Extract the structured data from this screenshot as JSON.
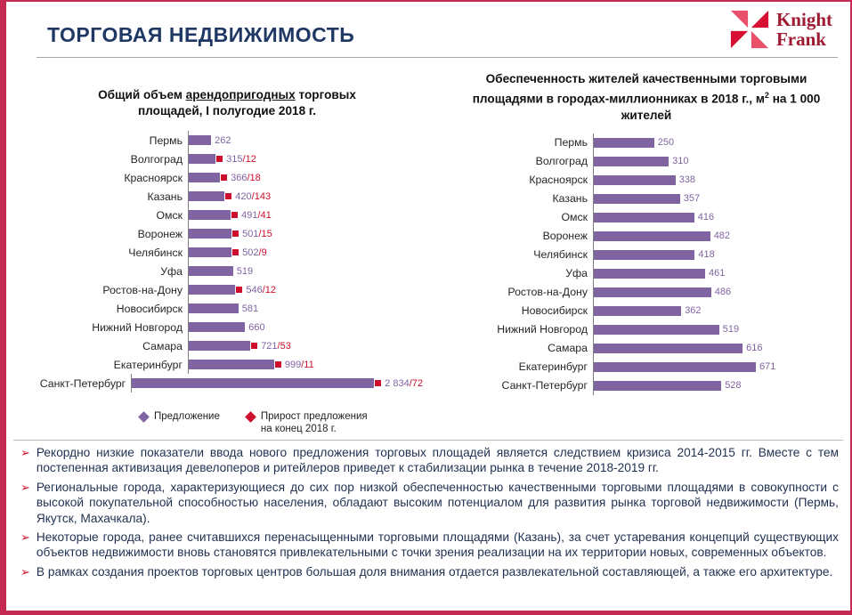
{
  "title": "ТОРГОВАЯ НЕДВИЖИМОСТЬ",
  "logo": {
    "line1": "Knight",
    "line2": "Frank"
  },
  "icons": {
    "logo": "knight-frank-pinwheel-icon",
    "bullet": "arrow-bullet-icon",
    "legend_supply": "purple-diamond-icon",
    "legend_growth": "red-diamond-icon"
  },
  "colors": {
    "navy": "#1F3864",
    "purple": "#8064A2",
    "red": "#CE0E2D",
    "frame": "#C52A52",
    "logo_text": "#9E1B32",
    "pink": "#E8506B",
    "dark_red": "#D60F33",
    "text": "#1F3050",
    "gray_line": "#A6A6A6",
    "axis": "#7F7F7F"
  },
  "headers": {
    "left": {
      "pre": "Общий объем ",
      "underlined": "арендопригодных",
      "post": " торговых площадей, I полугодие 2018 г."
    },
    "right": {
      "pre": "Обеспеченность жителей качественными торговыми площадями в городах-миллионниках в 2018 г., м",
      "sup": "2",
      "post": " на 1 000 жителей"
    }
  },
  "chart_data": [
    {
      "type": "bar",
      "orientation": "horizontal",
      "title": "Общий объем арендопригодных торговых площадей, I полугодие 2018 г.",
      "categories": [
        "Пермь",
        "Волгоград",
        "Красноярск",
        "Казань",
        "Омск",
        "Воронеж",
        "Челябинск",
        "Уфа",
        "Ростов-на-Дону",
        "Новосибирск",
        "Нижний Новгород",
        "Самара",
        "Екатеринбург",
        "Санкт-Петербург"
      ],
      "series": [
        {
          "name": "Предложение",
          "values": [
            262,
            315,
            366,
            420,
            491,
            501,
            502,
            519,
            546,
            581,
            660,
            721,
            999,
            2834
          ]
        },
        {
          "name": "Прирост предложения на конец 2018 г.",
          "values": [
            null,
            12,
            18,
            143,
            41,
            15,
            9,
            null,
            12,
            null,
            null,
            53,
            11,
            72
          ]
        }
      ],
      "value_labels": [
        "262",
        "315",
        "366",
        "420",
        "491",
        "501",
        "502",
        "519",
        "546",
        "581",
        "660",
        "721",
        "999",
        "2 834"
      ],
      "growth_labels": [
        null,
        "12",
        "18",
        "143",
        "41",
        "15",
        "9",
        null,
        "12",
        null,
        null,
        "53",
        "11",
        "72"
      ],
      "xlim": [
        0,
        3000
      ],
      "legend_position": "bottom",
      "grid": false
    },
    {
      "type": "bar",
      "orientation": "horizontal",
      "title": "Обеспеченность жителей качественными торговыми площадями в городах-миллионниках в 2018 г., м² на 1 000 жителей",
      "categories": [
        "Пермь",
        "Волгоград",
        "Красноярск",
        "Казань",
        "Омск",
        "Воронеж",
        "Челябинск",
        "Уфа",
        "Ростов-на-Дону",
        "Новосибирск",
        "Нижний Новгород",
        "Самара",
        "Екатеринбург",
        "Санкт-Петербург"
      ],
      "values": [
        250,
        310,
        338,
        357,
        416,
        482,
        418,
        461,
        486,
        362,
        519,
        616,
        671,
        528
      ],
      "value_labels": [
        "250",
        "310",
        "338",
        "357",
        "416",
        "482",
        "418",
        "461",
        "486",
        "362",
        "519",
        "616",
        "671",
        "528"
      ],
      "xlim": [
        0,
        700
      ],
      "grid": false
    }
  ],
  "legend": {
    "growth_line1": "Прирост предложения",
    "growth_line2": "на конец 2018 г."
  },
  "bullet_marker": "➢",
  "bullets": [
    "Рекордно низкие показатели ввода нового предложения торговых площадей является следствием кризиса 2014-2015 гг. Вместе с тем постепенная активизация девелоперов и ритейлеров приведет к стабилизации рынка в течение 2018-2019 гг.",
    "Региональные города, характеризующиеся до сих пор низкой обеспеченностью качественными торговыми площадями в совокупности с высокой покупательной способностью населения, обладают высоким потенциалом для развития рынка торговой недвижимости (Пермь, Якутск, Махачкала).",
    "Некоторые города, ранее считавшихся перенасыщенными торговыми площадями (Казань), за счет устаревания концепций существующих объектов недвижимости вновь становятся привлекательными с точки зрения реализации на их территории новых, современных объектов.",
    "В рамках создания проектов торговых центров большая доля внимания отдается развлекательной составляющей, а также его архитектуре."
  ]
}
